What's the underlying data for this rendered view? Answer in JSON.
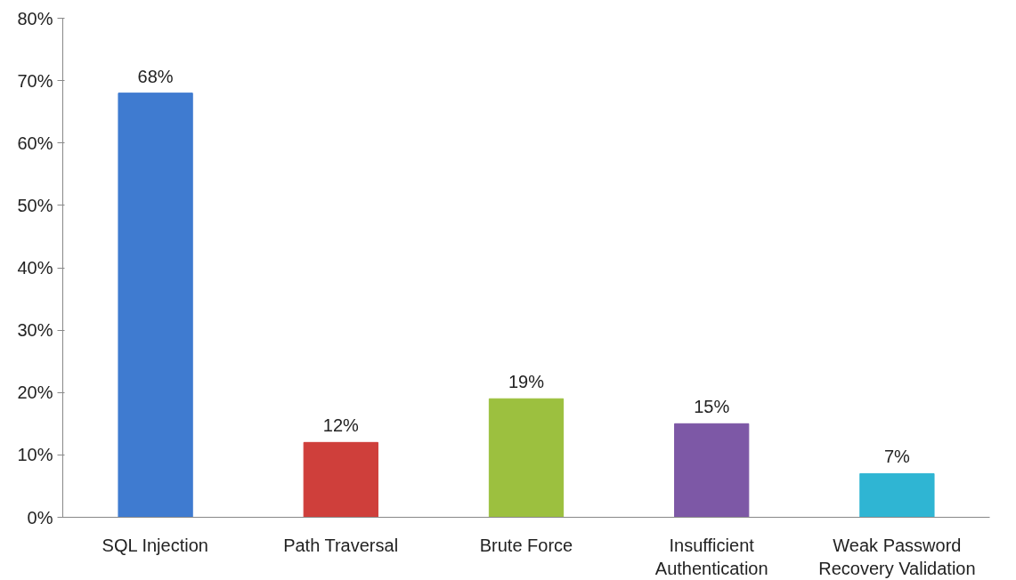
{
  "chart_data": {
    "type": "bar",
    "categories": [
      "SQL Injection",
      "Path Traversal",
      "Brute Force",
      "Insufficient\nAuthentication",
      "Weak Password\nRecovery Validation"
    ],
    "values": [
      68,
      12,
      19,
      15,
      7
    ],
    "colors": [
      "#3f7bd0",
      "#cf3f3b",
      "#9cc03f",
      "#7d58a6",
      "#2fb5d3"
    ],
    "value_labels": [
      "68%",
      "12%",
      "19%",
      "15%",
      "7%"
    ],
    "ylim": [
      0,
      80
    ],
    "yticks": [
      {
        "value": 0,
        "label": "0%"
      },
      {
        "value": 10,
        "label": "10%"
      },
      {
        "value": 20,
        "label": "20%"
      },
      {
        "value": 30,
        "label": "30%"
      },
      {
        "value": 40,
        "label": "40%"
      },
      {
        "value": 50,
        "label": "50%"
      },
      {
        "value": 60,
        "label": "60%"
      },
      {
        "value": 70,
        "label": "70%"
      },
      {
        "value": 80,
        "label": "80%"
      }
    ],
    "grid": false
  }
}
